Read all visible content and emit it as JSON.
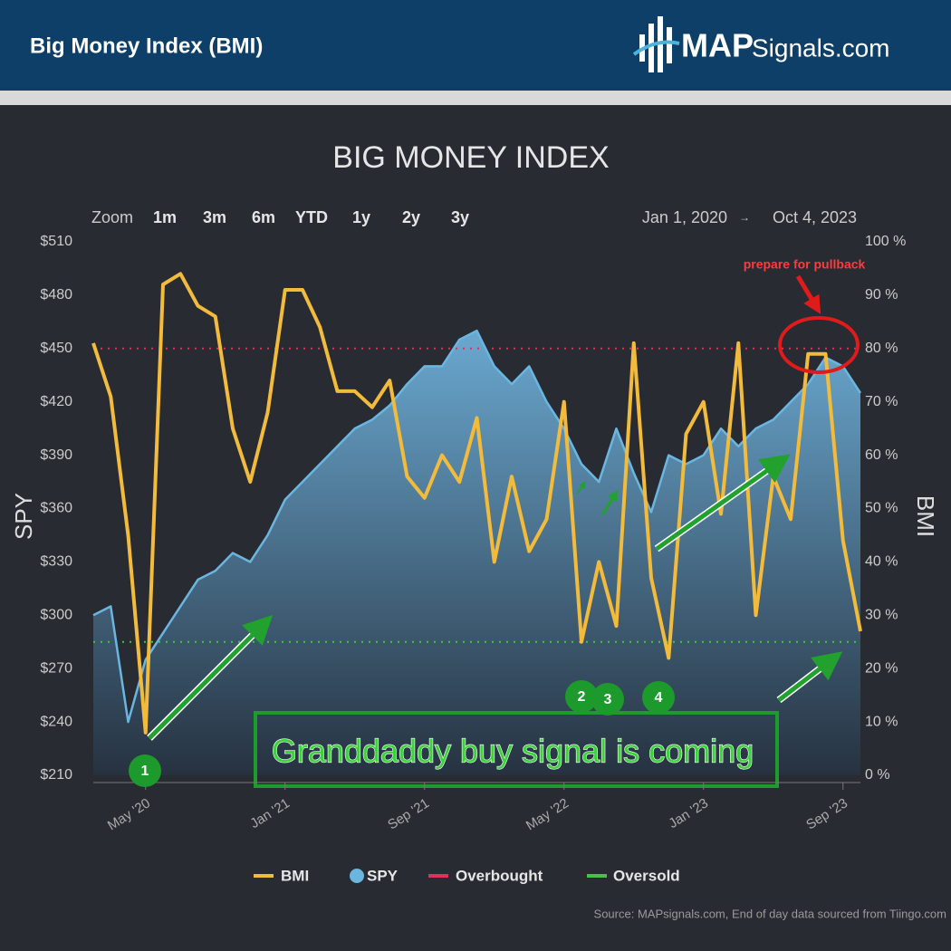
{
  "header": {
    "title": "Big Money Index (BMI)",
    "logo_bold": "MAP",
    "logo_rest": "Signals.com"
  },
  "chart_data": {
    "type": "line",
    "title": "BIG MONEY INDEX",
    "range_selector": {
      "label": "Zoom",
      "buttons": [
        "1m",
        "3m",
        "6m",
        "YTD",
        "1y",
        "2y",
        "3y"
      ],
      "from": "Jan 1, 2020",
      "to": "Oct 4, 2023"
    },
    "y_label": "SPY",
    "y2_label": "BMI",
    "x": [
      "2020-02",
      "2020-03",
      "2020-04",
      "2020-05",
      "2020-06",
      "2020-07",
      "2020-08",
      "2020-09",
      "2020-10",
      "2020-11",
      "2020-12",
      "2021-01",
      "2021-02",
      "2021-03",
      "2021-04",
      "2021-05",
      "2021-06",
      "2021-07",
      "2021-08",
      "2021-09",
      "2021-10",
      "2021-11",
      "2021-12",
      "2022-01",
      "2022-02",
      "2022-03",
      "2022-04",
      "2022-05",
      "2022-06",
      "2022-07",
      "2022-08",
      "2022-09",
      "2022-10",
      "2022-11",
      "2022-12",
      "2023-01",
      "2023-02",
      "2023-03",
      "2023-04",
      "2023-05",
      "2023-06",
      "2023-07",
      "2023-08",
      "2023-09",
      "2023-10"
    ],
    "xlim": [
      "2020-02",
      "2023-10"
    ],
    "xticks": [
      {
        "value": "2020-05",
        "label": "May '20"
      },
      {
        "value": "2021-01",
        "label": "Jan '21"
      },
      {
        "value": "2021-09",
        "label": "Sep '21"
      },
      {
        "value": "2022-05",
        "label": "May '22"
      },
      {
        "value": "2023-01",
        "label": "Jan '23"
      },
      {
        "value": "2023-09",
        "label": "Sep '23"
      }
    ],
    "series": [
      {
        "name": "BMI",
        "color": "#f2bb3c",
        "axis": "y2",
        "values": [
          81,
          71,
          45,
          8,
          92,
          94,
          88,
          86,
          65,
          55,
          68,
          91,
          91,
          84,
          72,
          72,
          69,
          74,
          56,
          52,
          60,
          55,
          67,
          40,
          56,
          42,
          48,
          70,
          25,
          40,
          28,
          81,
          37,
          22,
          64,
          70,
          49,
          81,
          30,
          56,
          48,
          79,
          79,
          44,
          27
        ]
      },
      {
        "name": "SPY",
        "color": "#6bb6e0",
        "axis": "y",
        "values": [
          300,
          305,
          240,
          275,
          290,
          305,
          320,
          325,
          335,
          330,
          345,
          365,
          375,
          385,
          395,
          405,
          410,
          418,
          430,
          440,
          440,
          455,
          460,
          440,
          430,
          440,
          420,
          405,
          385,
          375,
          405,
          380,
          358,
          390,
          385,
          390,
          405,
          395,
          405,
          410,
          420,
          430,
          445,
          440,
          425
        ]
      }
    ],
    "reference_lines": [
      {
        "name": "Overbought",
        "value": 80,
        "color": "#e0315a"
      },
      {
        "name": "Oversold",
        "value": 25,
        "color": "#43c543"
      }
    ],
    "ylim": [
      210,
      510
    ],
    "yticks": [
      {
        "value": 210,
        "label": "$210"
      },
      {
        "value": 240,
        "label": "$240"
      },
      {
        "value": 270,
        "label": "$270"
      },
      {
        "value": 300,
        "label": "$300"
      },
      {
        "value": 330,
        "label": "$330"
      },
      {
        "value": 360,
        "label": "$360"
      },
      {
        "value": 390,
        "label": "$390"
      },
      {
        "value": 420,
        "label": "$420"
      },
      {
        "value": 450,
        "label": "$450"
      },
      {
        "value": 480,
        "label": "$480"
      },
      {
        "value": 510,
        "label": "$510"
      }
    ],
    "y2lim": [
      0,
      100
    ],
    "y2ticks": [
      {
        "value": 0,
        "label": "0 %"
      },
      {
        "value": 10,
        "label": "10 %"
      },
      {
        "value": 20,
        "label": "20 %"
      },
      {
        "value": 30,
        "label": "30 %"
      },
      {
        "value": 40,
        "label": "40 %"
      },
      {
        "value": 50,
        "label": "50 %"
      },
      {
        "value": 60,
        "label": "60 %"
      },
      {
        "value": 70,
        "label": "70 %"
      },
      {
        "value": 80,
        "label": "80 %"
      },
      {
        "value": 90,
        "label": "90 %"
      },
      {
        "value": 100,
        "label": "100 %"
      }
    ],
    "grid": false,
    "annotations": [
      "prepare for pullback",
      "Granddaddy buy signal is coming",
      "1",
      "2",
      "3",
      "4"
    ],
    "source": "Source: MAPsignals.com, End of day data sourced from Tiingo.com"
  }
}
